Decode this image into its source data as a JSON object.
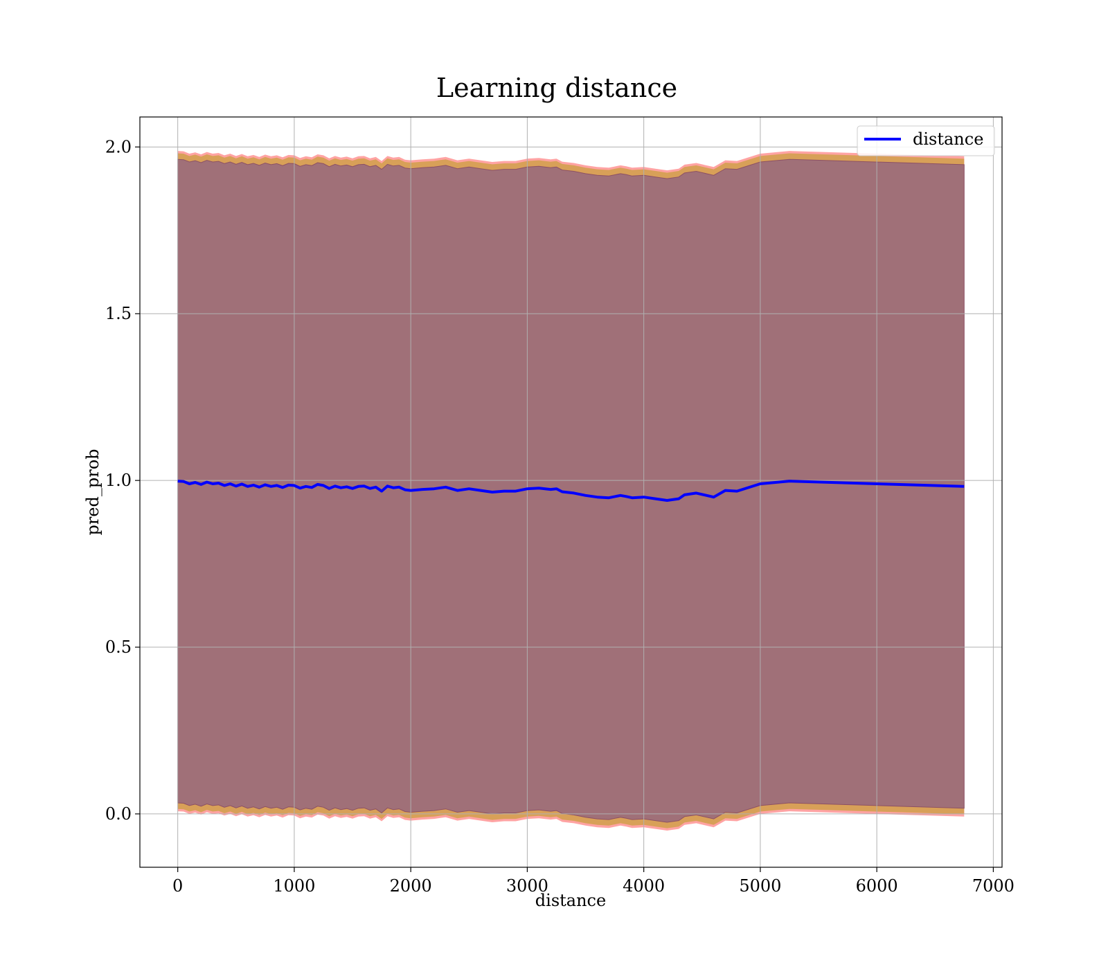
{
  "chart_data": {
    "type": "line",
    "title": "Learning distance",
    "xlabel": "distance",
    "ylabel": "pred_prob",
    "xlim": [
      -325,
      7075
    ],
    "ylim": [
      -0.16,
      2.09
    ],
    "xticks": [
      0,
      1000,
      2000,
      3000,
      4000,
      5000,
      6000,
      7000
    ],
    "xtick_labels": [
      "0",
      "1000",
      "2000",
      "3000",
      "4000",
      "5000",
      "6000",
      "7000"
    ],
    "yticks": [
      0.0,
      0.5,
      1.0,
      1.5,
      2.0
    ],
    "ytick_labels": [
      "0.0",
      "0.5",
      "1.0",
      "1.5",
      "2.0"
    ],
    "grid": true,
    "legend": {
      "position": "top-right",
      "entries": [
        "distance"
      ]
    },
    "colors": {
      "line": "#0000ff",
      "band_outer": "#ff9999",
      "band_mid": "#d4a050",
      "band_inner": "#a07078",
      "band_border": "#8c5064"
    },
    "series": [
      {
        "name": "distance",
        "x": [
          0,
          50,
          100,
          150,
          200,
          250,
          300,
          350,
          400,
          450,
          500,
          550,
          600,
          650,
          700,
          750,
          800,
          850,
          900,
          950,
          1000,
          1050,
          1100,
          1150,
          1200,
          1250,
          1300,
          1350,
          1400,
          1450,
          1500,
          1550,
          1600,
          1650,
          1700,
          1750,
          1800,
          1850,
          1900,
          1950,
          2000,
          2100,
          2200,
          2300,
          2400,
          2500,
          2600,
          2700,
          2800,
          2900,
          3000,
          3100,
          3200,
          3250,
          3300,
          3400,
          3500,
          3600,
          3700,
          3800,
          3850,
          3900,
          4000,
          4100,
          4200,
          4300,
          4350,
          4450,
          4600,
          4700,
          4800,
          5000,
          5250,
          6750
        ],
        "y": [
          0.998,
          0.997,
          0.99,
          0.994,
          0.988,
          0.995,
          0.99,
          0.992,
          0.985,
          0.99,
          0.983,
          0.989,
          0.982,
          0.986,
          0.98,
          0.987,
          0.982,
          0.985,
          0.979,
          0.986,
          0.985,
          0.977,
          0.982,
          0.979,
          0.988,
          0.985,
          0.976,
          0.983,
          0.978,
          0.981,
          0.976,
          0.982,
          0.983,
          0.976,
          0.98,
          0.968,
          0.983,
          0.978,
          0.98,
          0.972,
          0.97,
          0.973,
          0.975,
          0.98,
          0.97,
          0.975,
          0.97,
          0.965,
          0.968,
          0.968,
          0.975,
          0.977,
          0.973,
          0.975,
          0.966,
          0.962,
          0.955,
          0.95,
          0.948,
          0.955,
          0.952,
          0.948,
          0.95,
          0.945,
          0.94,
          0.945,
          0.957,
          0.962,
          0.95,
          0.97,
          0.968,
          0.99,
          0.998,
          0.982
        ]
      }
    ],
    "band_width": {
      "outer": 0.99,
      "mid": 0.983,
      "inner": 0.965
    }
  }
}
